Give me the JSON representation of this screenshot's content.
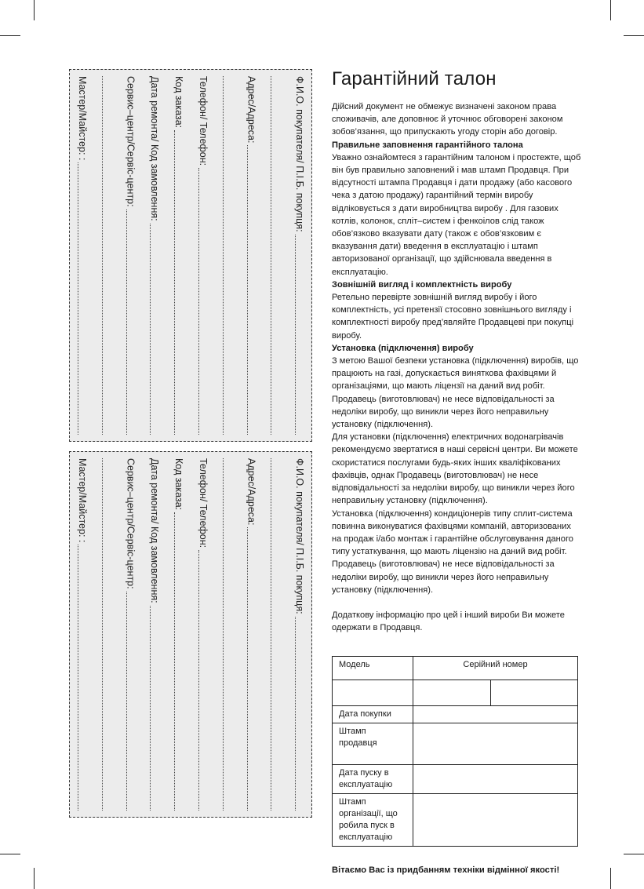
{
  "coupon": {
    "lines": [
      {
        "label": "Ф.И.О. покупателя/ П.І.Б. покупця:"
      },
      {
        "label": ""
      },
      {
        "label": "Адрес/Адреса:"
      },
      {
        "label": ""
      },
      {
        "label": "Телефон/ Телефон:"
      },
      {
        "label": "Код заказа:"
      },
      {
        "label": "Дата ремонта/ Код замовлення:"
      },
      {
        "label": "Сервис–центр/Сервіс-центр:"
      },
      {
        "label": ""
      },
      {
        "label": "Мастер/Майстер: :"
      }
    ]
  },
  "warranty": {
    "title": "Гарантійний талон",
    "intro": "Дійсний документ не обмежує визначені законом права споживачів, але доповнює й уточнює обговорені законом зобов’язання, що припускають угоду сторін або договір.",
    "sections": [
      {
        "heading": "Правильне заповнення гарантійного талона",
        "text": "Уважно ознайомтеся з гарантійним талоном і простежте, щоб він був правильно заповнений і мав штамп Продавця. При відсутності штампа Продавця і дати продажу (або касового чека з датою продажу) гарантійний термін виробу відліковується з дати виробництва виробу . Для газових котлів, колонок, спліт–систем і фенкоілов слід також обов’язково вказувати дату (також є обов’язковим є вказування дати) введення в експлуатацію і штамп авторизованої організації, що здійснювала введення в експлуатацію."
      },
      {
        "heading": "Зовнішній вигляд і комплектність виробу",
        "text": "Ретельно перевірте зовнішній вигляд виробу і його комплектність, усі претензії стосовно зовнішнього вигляду і комплектності виробу пред’являйте Продавцеві при покупці виробу."
      },
      {
        "heading": "Установка (підключення) виробу",
        "text": "З метою Вашої безпеки установка (підключення) виробів, що працюють на газі, допускається виняткова фахівцями й організаціями, що мають ліцензії на даний вид робіт. Продавець (виготовлювач) не несе відповідальності за недоліки виробу, що виникли через його неправильну установку (підключення)."
      }
    ],
    "para_boilers": "Для установки (підключення) електричних водонагрівачів рекомендуємо звертатися в наші сервісні центри. Ви можете скористатися послугами будь-яких інших кваліфікованих фахівців, однак Продавець (виготовлювач) не несе відповідальності за недоліки виробу, що виникли через його неправильну установку (підключення).",
    "para_ac": "Установка (підключення) кондиціонерів типу сплит-система повинна виконуватися фахівцями компаній, авторизованих на продаж і/або монтаж і гарантійне обслуговування даного типу устаткування, що мають ліцензію на даний вид робіт. Продавець (виготовлювач) не несе відповідальності за недоліки виробу, що виникли через його неправильну установку (підключення).",
    "para_info": "Додаткову інформацію про цей і інший вироби Ви можете одержати в Продавця.",
    "table": {
      "model": "Модель",
      "serial": "Серійний номер",
      "purchase_date": "Дата покупки",
      "seller_stamp": "Штамп продавця",
      "start_date": "Дата пуску в експлуатацію",
      "org_stamp": "Штамп організації, що робила пуск в експлуатацію"
    },
    "closing": "Вітаємо Вас із придбанням техніки відмінної якості!"
  }
}
